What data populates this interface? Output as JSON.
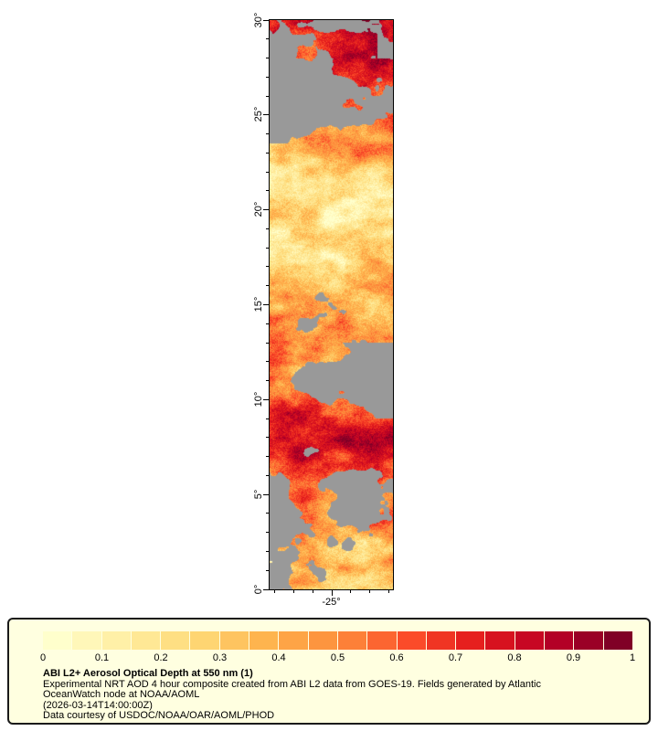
{
  "page": {
    "background": "#ffffff"
  },
  "map": {
    "plot_border_color": "#000000",
    "no_data_color": "#999999",
    "y_axis": {
      "tick_labels": [
        "30°",
        "25°",
        "20°",
        "15°",
        "10°",
        "5°",
        "0°"
      ]
    },
    "x_axis": {
      "label": "-25°"
    }
  },
  "colorbar": {
    "tick_labels": [
      "0",
      "0.1",
      "0.2",
      "0.3",
      "0.4",
      "0.5",
      "0.6",
      "0.7",
      "0.8",
      "0.9",
      "1"
    ],
    "colors": [
      "#ffffcc",
      "#fff7b9",
      "#fff0a7",
      "#ffe895",
      "#fedf83",
      "#fed572",
      "#fec460",
      "#feb44e",
      "#fea446",
      "#fd953f",
      "#fd8038",
      "#fc6531",
      "#fb4b29",
      "#f03523",
      "#e6201e",
      "#d7121f",
      "#c70723",
      "#b30026",
      "#9a0026",
      "#800026"
    ]
  },
  "legend": {
    "background": "#ffffe0",
    "border_color": "#1a1a1a",
    "title": "ABI L2+ Aerosol Optical Depth at 550 nm (1)",
    "description_line1": "Experimental NRT AOD 4 hour composite created from ABI L2 data from GOES-19. Fields generated by Atlantic",
    "description_line2": "OceanWatch node at NOAA/AOML",
    "timestamp": "(2026-03-14T14:00:00Z)",
    "credit": "Data courtesy of USDOC/NOAA/OAR/AOML/PHOD"
  },
  "chart_data": {
    "type": "heatmap",
    "title": "ABI L2+ Aerosol Optical Depth at 550 nm (1)",
    "x_axis": {
      "tick_labels": [
        "-25°"
      ],
      "approx_range_deg_lon": [
        -28.25,
        -21.75
      ],
      "unit": "degrees longitude"
    },
    "y_axis": {
      "tick_labels": [
        "0°",
        "5°",
        "10°",
        "15°",
        "20°",
        "25°",
        "30°"
      ],
      "range_deg_lat": [
        0,
        30
      ],
      "unit": "degrees latitude"
    },
    "colorbar": {
      "label": "Aerosol Optical Depth at 550 nm",
      "range": [
        0,
        1
      ],
      "tick_labels": [
        "0",
        "0.1",
        "0.2",
        "0.3",
        "0.4",
        "0.5",
        "0.6",
        "0.7",
        "0.8",
        "0.9",
        "1"
      ],
      "position": "bottom"
    },
    "no_data": "grey pixels indicate missing / no-retrieval data",
    "grid": false,
    "latitude_bands_observed": [
      {
        "lat_range": "27-30",
        "aod": "0.7-1.0",
        "note": "dense dark-red plume with grey no-data gaps"
      },
      {
        "lat_range": "23-27",
        "aod": "0.4-0.9",
        "note": "red/orange patches, large grey areas toward the left"
      },
      {
        "lat_range": "17-23",
        "aod": "0.1-0.3",
        "note": "pale yellow low-AOD band"
      },
      {
        "lat_range": "13-17",
        "aod": "0.3-0.5",
        "note": "orange horizontal/diagonal streaks with grey gaps"
      },
      {
        "lat_range": "9-13",
        "aod": "0.3-0.6",
        "note": "orange at left, large grey no-data region at right"
      },
      {
        "lat_range": "7-9",
        "aod": "0.7-1.0",
        "note": "dark red high-AOD band spanning full width"
      },
      {
        "lat_range": "2-7",
        "aod": "0.3-0.9",
        "note": "mostly grey with scattered red/orange speckles"
      },
      {
        "lat_range": "0-2",
        "aod": "0.2-0.4",
        "note": "yellow-orange patches, grey toward the left"
      }
    ]
  }
}
